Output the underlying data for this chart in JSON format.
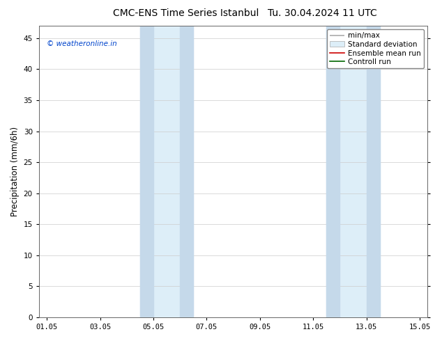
{
  "title": "CMC-ENS Time Series Istanbul",
  "title2": "Tu. 30.04.2024 11 UTC",
  "ylabel": "Precipitation (mm/6h)",
  "ylim": [
    0,
    47
  ],
  "yticks": [
    0,
    5,
    10,
    15,
    20,
    25,
    30,
    35,
    40,
    45
  ],
  "xtick_labels": [
    "01.05",
    "03.05",
    "05.05",
    "07.05",
    "09.05",
    "11.05",
    "13.05",
    "15.05"
  ],
  "shaded_light_color": "#ddeef8",
  "shaded_dark_color": "#c5d9ea",
  "watermark": "© weatheronline.in",
  "watermark_color": "#0044cc",
  "bg_color": "#ffffff",
  "grid_color": "#cccccc",
  "title_fontsize": 10,
  "tick_fontsize": 7.5,
  "ylabel_fontsize": 8.5,
  "legend_fontsize": 7.5
}
